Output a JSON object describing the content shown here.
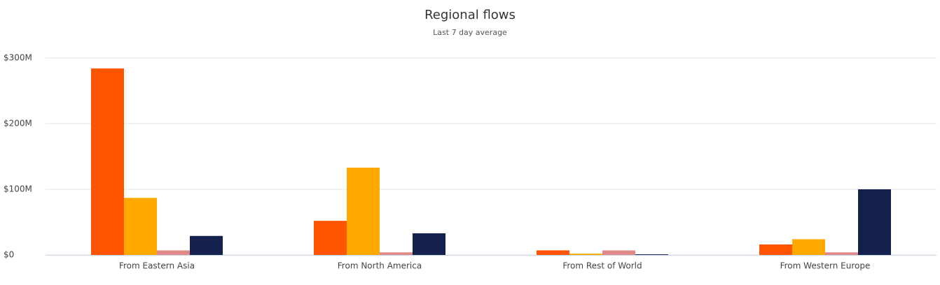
{
  "chart_data": {
    "type": "bar",
    "title": "Regional flows",
    "subtitle": "Last 7 day average",
    "categories": [
      "From Eastern Asia",
      "From North America",
      "From Rest of World",
      "From Western Europe"
    ],
    "series": [
      {
        "color": "#ff5500",
        "values": [
          284000000,
          52000000,
          7000000,
          16000000
        ]
      },
      {
        "color": "#ffaa00",
        "values": [
          87000000,
          133000000,
          2000000,
          24000000
        ]
      },
      {
        "color": "#e08a8a",
        "values": [
          7000000,
          4000000,
          7000000,
          4000000
        ]
      },
      {
        "color": "#14214d",
        "values": [
          29000000,
          33000000,
          1000000,
          100000000
        ]
      }
    ],
    "ylim": [
      0,
      300000000
    ],
    "yticks": [
      {
        "value": 0,
        "label": "$0"
      },
      {
        "value": 100000000,
        "label": "$100M"
      },
      {
        "value": 200000000,
        "label": "$200M"
      },
      {
        "value": 300000000,
        "label": "$300M"
      }
    ],
    "grid": true
  }
}
